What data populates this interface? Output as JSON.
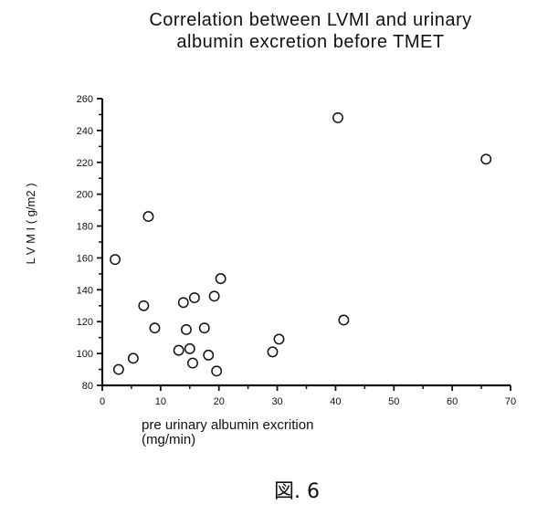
{
  "chart_data": {
    "type": "scatter",
    "title_lines": [
      "Correlation between LVMI and urinary",
      "albumin excretion before TMET"
    ],
    "xlabel_lines": [
      "pre urinary albumin excrition",
      "(mg/min)"
    ],
    "ylabel": "L V M I ( g/m2 )",
    "xlim": [
      0,
      70
    ],
    "ylim": [
      80,
      260
    ],
    "xticks": [
      0,
      10,
      20,
      30,
      40,
      50,
      60,
      70
    ],
    "yticks": [
      80,
      100,
      120,
      140,
      160,
      180,
      200,
      220,
      240,
      260
    ],
    "marker": "open-circle",
    "grid": false,
    "points": [
      {
        "x": 2.2,
        "y": 159
      },
      {
        "x": 2.8,
        "y": 90
      },
      {
        "x": 5.3,
        "y": 97
      },
      {
        "x": 7.1,
        "y": 130
      },
      {
        "x": 7.9,
        "y": 186
      },
      {
        "x": 9.0,
        "y": 116
      },
      {
        "x": 13.1,
        "y": 102
      },
      {
        "x": 13.9,
        "y": 132
      },
      {
        "x": 14.4,
        "y": 115
      },
      {
        "x": 15.0,
        "y": 103
      },
      {
        "x": 15.5,
        "y": 94
      },
      {
        "x": 15.8,
        "y": 135
      },
      {
        "x": 17.5,
        "y": 116
      },
      {
        "x": 18.2,
        "y": 99
      },
      {
        "x": 19.2,
        "y": 136
      },
      {
        "x": 19.6,
        "y": 89
      },
      {
        "x": 20.3,
        "y": 147
      },
      {
        "x": 29.2,
        "y": 101
      },
      {
        "x": 30.3,
        "y": 109
      },
      {
        "x": 40.4,
        "y": 248
      },
      {
        "x": 41.4,
        "y": 121
      },
      {
        "x": 65.8,
        "y": 222
      }
    ]
  },
  "figure_caption": "図. 6"
}
